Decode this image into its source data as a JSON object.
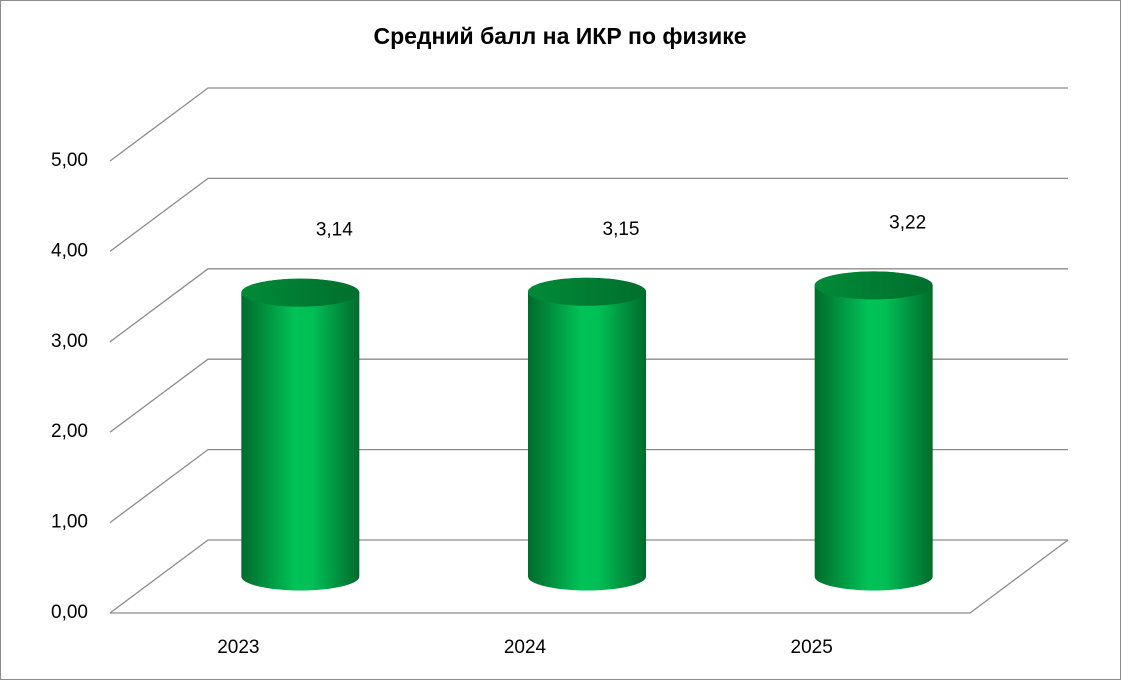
{
  "chart_data": {
    "type": "bar3d",
    "title": "Средний балл на ИКР по физике",
    "categories": [
      "2023",
      "2024",
      "2025"
    ],
    "values": [
      3.14,
      3.15,
      3.22
    ],
    "value_labels": [
      "3,14",
      "3,15",
      "3,22"
    ],
    "color": "#00b050",
    "ylim": [
      0,
      5
    ],
    "yticks": [
      {
        "value": 0,
        "label": "0,00"
      },
      {
        "value": 1,
        "label": "1,00"
      },
      {
        "value": 2,
        "label": "2,00"
      },
      {
        "value": 3,
        "label": "3,00"
      },
      {
        "value": 4,
        "label": "4,00"
      },
      {
        "value": 5,
        "label": "5,00"
      }
    ],
    "grid": true
  }
}
